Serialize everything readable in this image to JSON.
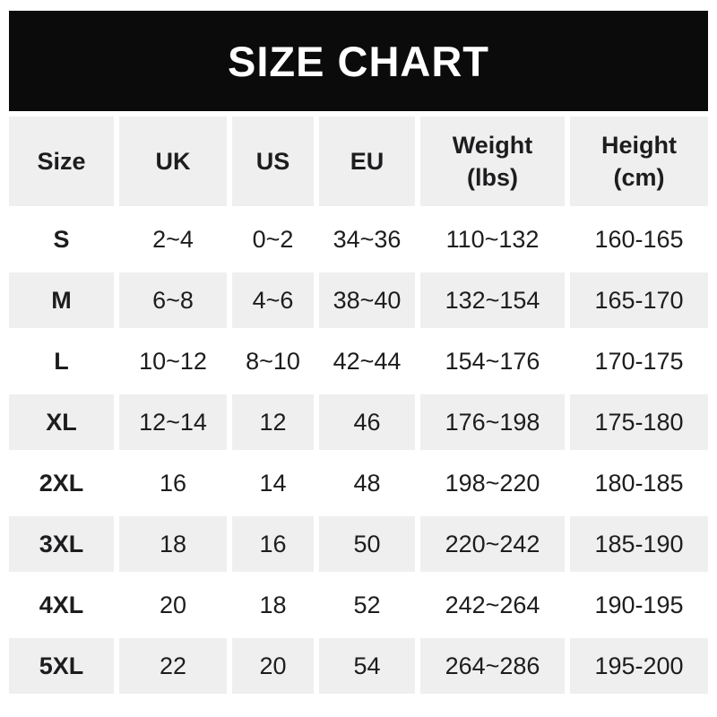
{
  "banner": {
    "title": "SIZE CHART"
  },
  "colors": {
    "banner_bg": "#0b0b0b",
    "banner_text": "#ffffff",
    "row_alt_bg": "#efefef",
    "text": "#1d1d1f",
    "page_bg": "#ffffff"
  },
  "table": {
    "columns": [
      {
        "label": "Size",
        "sub": ""
      },
      {
        "label": "UK",
        "sub": ""
      },
      {
        "label": "US",
        "sub": ""
      },
      {
        "label": "EU",
        "sub": ""
      },
      {
        "label": "Weight",
        "sub": "(lbs)"
      },
      {
        "label": "Height",
        "sub": "(cm)"
      }
    ],
    "rows": [
      {
        "size": "S",
        "uk": "2~4",
        "us": "0~2",
        "eu": "34~36",
        "weight": "110~132",
        "height": "160-165"
      },
      {
        "size": "M",
        "uk": "6~8",
        "us": "4~6",
        "eu": "38~40",
        "weight": "132~154",
        "height": "165-170"
      },
      {
        "size": "L",
        "uk": "10~12",
        "us": "8~10",
        "eu": "42~44",
        "weight": "154~176",
        "height": "170-175"
      },
      {
        "size": "XL",
        "uk": "12~14",
        "us": "12",
        "eu": "46",
        "weight": "176~198",
        "height": "175-180"
      },
      {
        "size": "2XL",
        "uk": "16",
        "us": "14",
        "eu": "48",
        "weight": "198~220",
        "height": "180-185"
      },
      {
        "size": "3XL",
        "uk": "18",
        "us": "16",
        "eu": "50",
        "weight": "220~242",
        "height": "185-190"
      },
      {
        "size": "4XL",
        "uk": "20",
        "us": "18",
        "eu": "52",
        "weight": "242~264",
        "height": "190-195"
      },
      {
        "size": "5XL",
        "uk": "22",
        "us": "20",
        "eu": "54",
        "weight": "264~286",
        "height": "195-200"
      }
    ]
  },
  "chart_data": {
    "type": "table",
    "title": "SIZE CHART",
    "columns": [
      "Size",
      "UK",
      "US",
      "EU",
      "Weight (lbs)",
      "Height (cm)"
    ],
    "rows": [
      [
        "S",
        "2~4",
        "0~2",
        "34~36",
        "110~132",
        "160-165"
      ],
      [
        "M",
        "6~8",
        "4~6",
        "38~40",
        "132~154",
        "165-170"
      ],
      [
        "L",
        "10~12",
        "8~10",
        "42~44",
        "154~176",
        "170-175"
      ],
      [
        "XL",
        "12~14",
        "12",
        "46",
        "176~198",
        "175-180"
      ],
      [
        "2XL",
        "16",
        "14",
        "48",
        "198~220",
        "180-185"
      ],
      [
        "3XL",
        "18",
        "16",
        "50",
        "220~242",
        "185-190"
      ],
      [
        "4XL",
        "20",
        "18",
        "52",
        "242~264",
        "190-195"
      ],
      [
        "5XL",
        "22",
        "20",
        "54",
        "264~286",
        "195-200"
      ]
    ],
    "layout_hints": {
      "header_background": "#efefef",
      "alternating_row_background": [
        "#ffffff",
        "#efefef"
      ],
      "banner_background": "#0b0b0b",
      "cell_gutter_color": "#ffffff"
    }
  }
}
